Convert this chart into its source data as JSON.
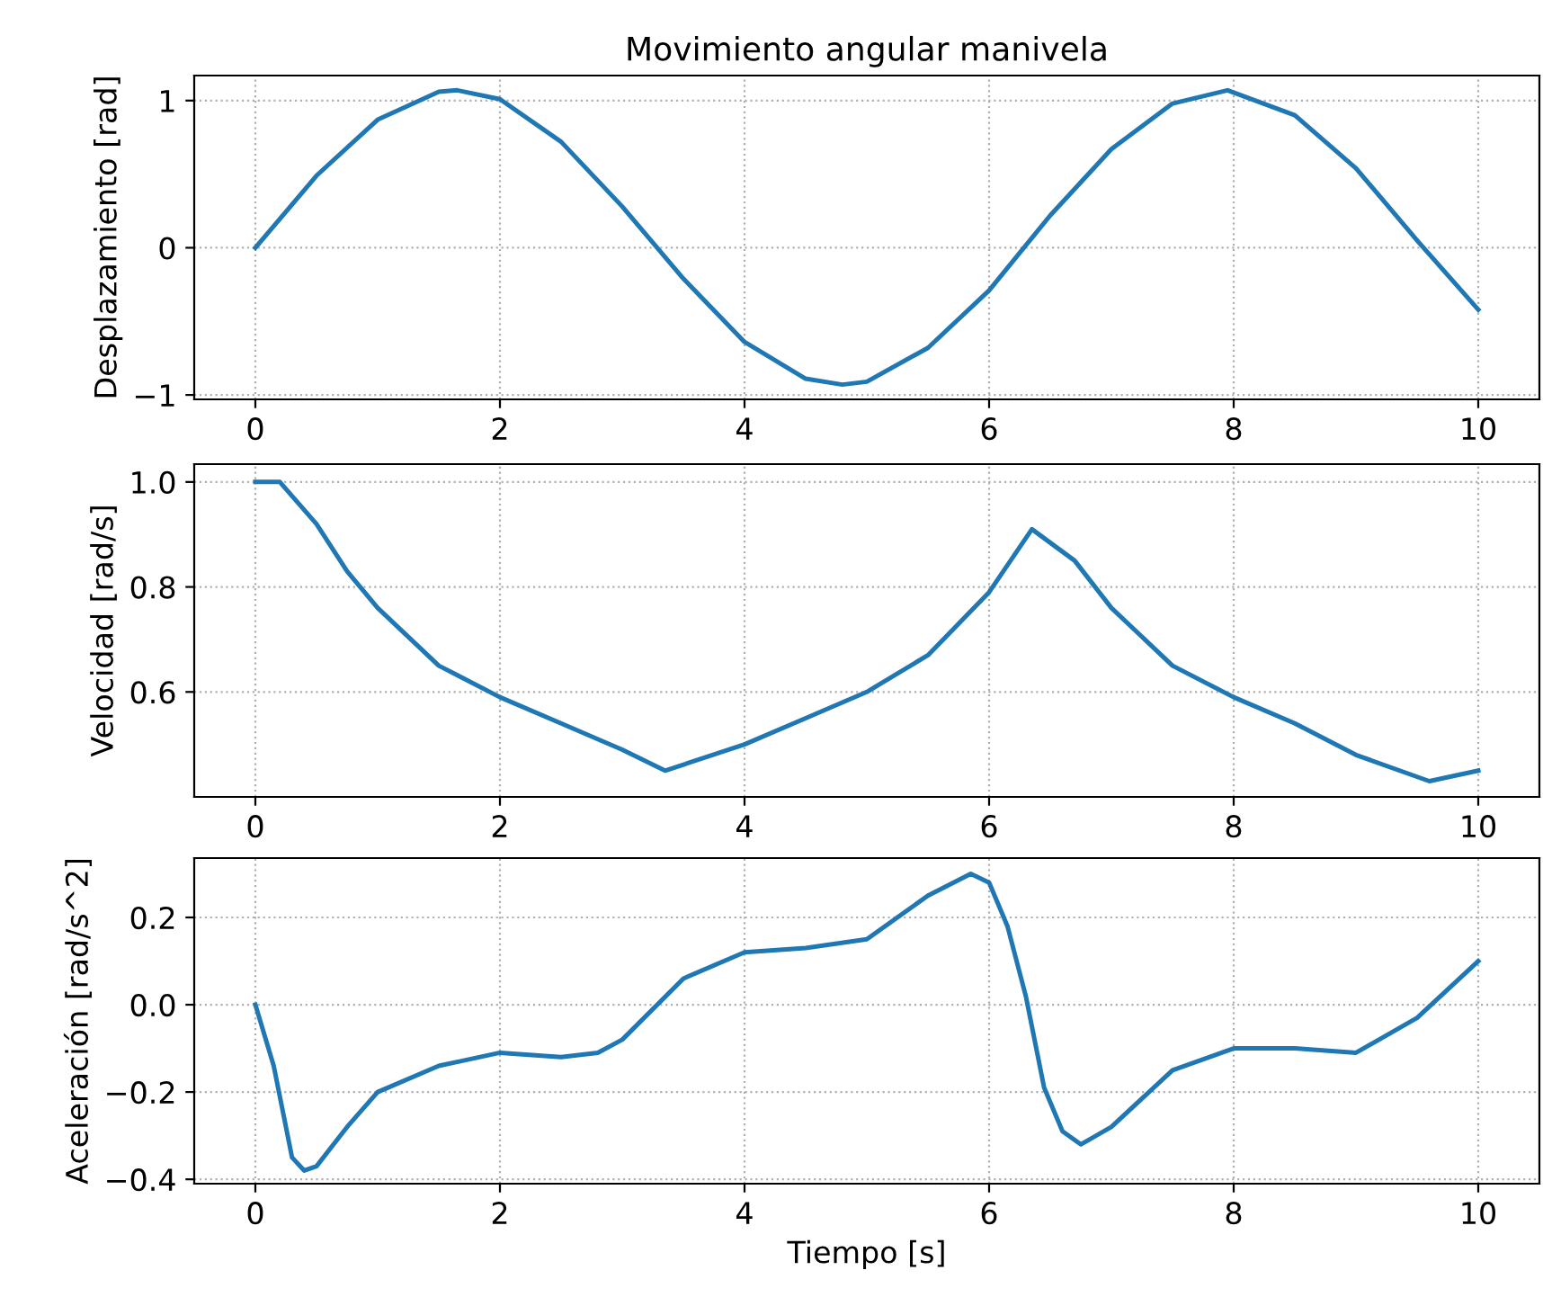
{
  "chart_data": [
    {
      "type": "line",
      "title": "Movimiento angular manivela",
      "ylabel": "Desplazamiento [rad]",
      "xlim": [
        -0.5,
        10.5
      ],
      "xticks": [
        0,
        2,
        4,
        6,
        8,
        10
      ],
      "ylim": [
        -1.03,
        1.17
      ],
      "yticks": [
        {
          "value": -1,
          "label": "−1"
        },
        0,
        1
      ],
      "grid": "dotted",
      "series": [
        {
          "color": "#1f77b4",
          "x": [
            0,
            0.5,
            1,
            1.5,
            1.65,
            2,
            2.5,
            3,
            3.5,
            4,
            4.5,
            4.8,
            5,
            5.5,
            6,
            6.5,
            7,
            7.5,
            7.95,
            8.5,
            9,
            9.5,
            10
          ],
          "values": [
            0,
            0.49,
            0.87,
            1.06,
            1.07,
            1.01,
            0.72,
            0.28,
            -0.21,
            -0.64,
            -0.89,
            -0.93,
            -0.91,
            -0.68,
            -0.29,
            0.22,
            0.67,
            0.98,
            1.07,
            0.9,
            0.54,
            0.05,
            -0.42
          ]
        }
      ]
    },
    {
      "type": "line",
      "ylabel": "Velocidad [rad/s]",
      "xlim": [
        -0.5,
        10.5
      ],
      "xticks": [
        0,
        2,
        4,
        6,
        8,
        10
      ],
      "ylim": [
        0.4,
        1.034
      ],
      "yticks": [
        {
          "value": 0.6,
          "label": "0.6"
        },
        {
          "value": 0.8,
          "label": "0.8"
        },
        {
          "value": 1.0,
          "label": "1.0"
        }
      ],
      "grid": "dotted",
      "series": [
        {
          "color": "#1f77b4",
          "x": [
            0,
            0.2,
            0.5,
            0.75,
            1,
            1.5,
            2,
            2.5,
            3,
            3.35,
            4,
            4.5,
            5,
            5.5,
            6,
            6.35,
            6.7,
            7,
            7.5,
            8,
            8.5,
            9,
            9.6,
            10
          ],
          "values": [
            1.0,
            1.0,
            0.92,
            0.83,
            0.76,
            0.65,
            0.59,
            0.54,
            0.49,
            0.45,
            0.5,
            0.55,
            0.6,
            0.67,
            0.79,
            0.91,
            0.85,
            0.76,
            0.65,
            0.59,
            0.54,
            0.48,
            0.43,
            0.45
          ]
        }
      ]
    },
    {
      "type": "line",
      "ylabel": "Aceleración [rad/s^2]",
      "xlabel": "Tiempo [s]",
      "xlim": [
        -0.5,
        10.5
      ],
      "xticks": [
        0,
        2,
        4,
        6,
        8,
        10
      ],
      "ylim": [
        -0.41,
        0.336
      ],
      "yticks": [
        {
          "value": -0.4,
          "label": "−0.4"
        },
        {
          "value": -0.2,
          "label": "−0.2"
        },
        {
          "value": 0,
          "label": "0.0"
        },
        {
          "value": 0.2,
          "label": "0.2"
        }
      ],
      "grid": "dotted",
      "series": [
        {
          "color": "#1f77b4",
          "x": [
            0,
            0.15,
            0.3,
            0.4,
            0.5,
            0.75,
            1,
            1.5,
            2,
            2.5,
            2.8,
            3,
            3.5,
            4,
            4.5,
            5,
            5.5,
            5.85,
            6,
            6.15,
            6.3,
            6.45,
            6.6,
            6.75,
            7,
            7.5,
            8,
            8.5,
            9,
            9.5,
            10
          ],
          "values": [
            0,
            -0.14,
            -0.35,
            -0.38,
            -0.37,
            -0.28,
            -0.2,
            -0.14,
            -0.11,
            -0.12,
            -0.11,
            -0.08,
            0.06,
            0.12,
            0.13,
            0.15,
            0.25,
            0.3,
            0.28,
            0.18,
            0.02,
            -0.19,
            -0.29,
            -0.32,
            -0.28,
            -0.15,
            -0.1,
            -0.1,
            -0.11,
            -0.03,
            0.1
          ]
        }
      ]
    }
  ]
}
